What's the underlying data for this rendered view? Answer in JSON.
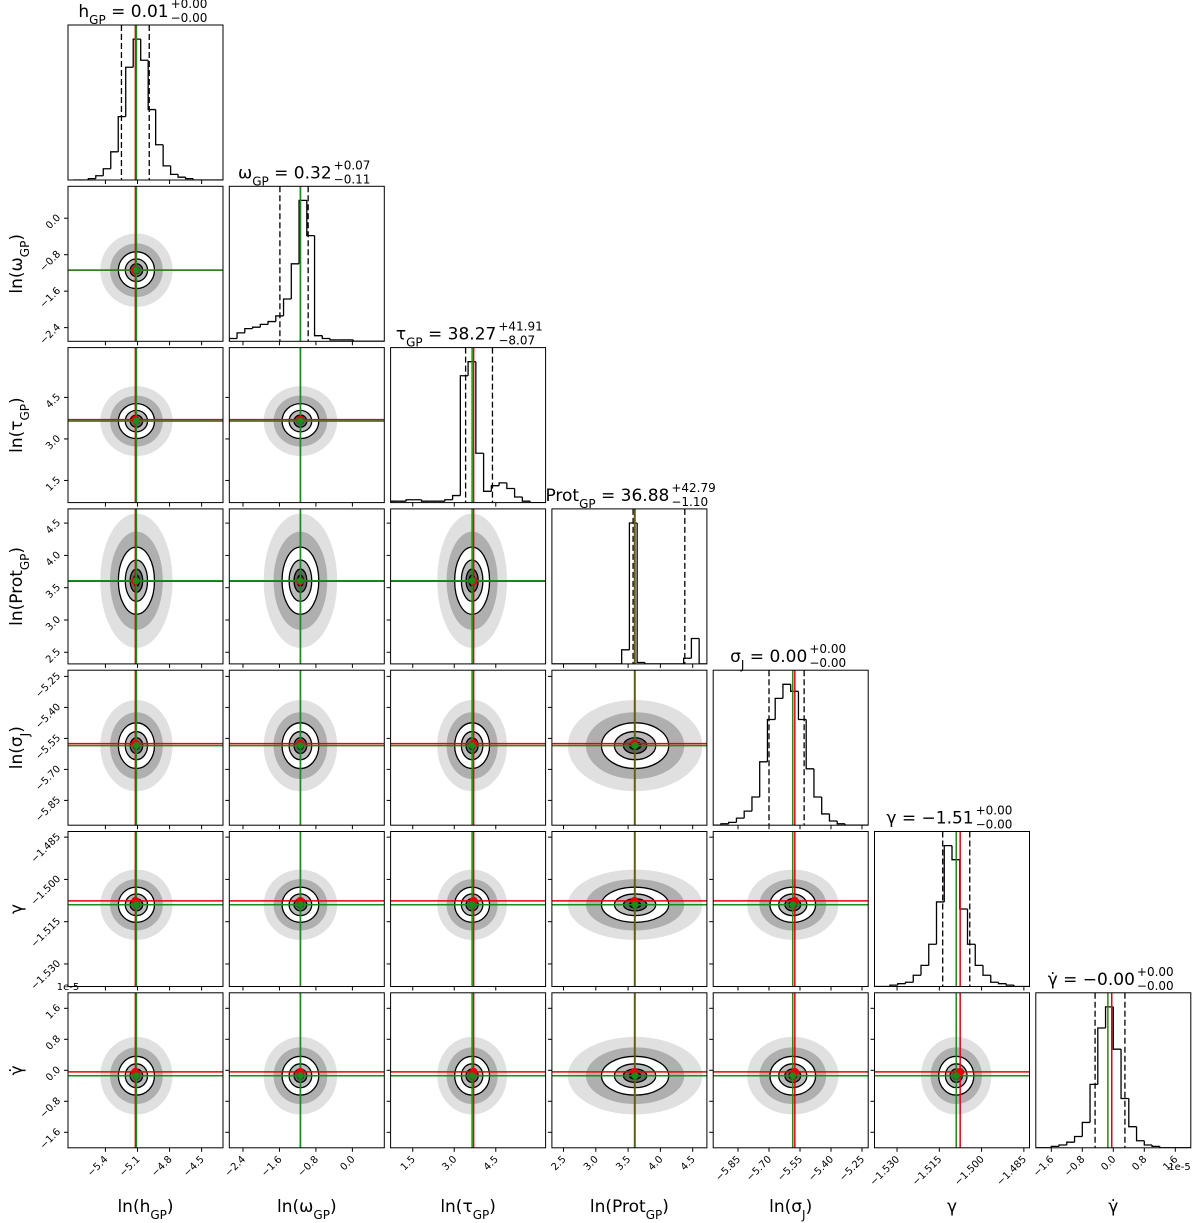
{
  "chart_data": {
    "type": "corner",
    "truth_color": "#e8000b",
    "median_color": "#1a8c1a",
    "offset_label": "1e-5",
    "params": [
      {
        "label": [
          {
            "t": "ln(h"
          },
          {
            "t": "GP",
            "sub": true
          },
          {
            "t": ")"
          }
        ],
        "title": {
          "parts": [
            {
              "t": "h"
            },
            {
              "t": "GP",
              "sub": true
            },
            {
              "t": " = 0.01"
            }
          ],
          "upper": "+0.00",
          "lower": "−0.00"
        },
        "lim": [
          -5.75,
          -4.3
        ],
        "ticks": [
          {
            "value": -5.4,
            "label": "−5.4"
          },
          {
            "value": -5.1,
            "label": "−5.1"
          },
          {
            "value": -4.8,
            "label": "−4.8"
          },
          {
            "value": -4.5,
            "label": "−4.5"
          }
        ],
        "truth": -5.12,
        "median": -5.11,
        "quantiles": [
          -5.25,
          -4.99
        ],
        "bins": [
          -5.7,
          -5.63,
          -5.56,
          -5.49,
          -5.42,
          -5.35,
          -5.28,
          -5.21,
          -5.14,
          -5.07,
          -5.0,
          -4.93,
          -4.86,
          -4.79,
          -4.72,
          -4.65,
          -4.58,
          -4.51,
          -4.44,
          -4.37,
          -4.3
        ],
        "counts": [
          0,
          0,
          1,
          3,
          8,
          20,
          45,
          80,
          100,
          85,
          50,
          25,
          10,
          4,
          2,
          1,
          0,
          0,
          0,
          0
        ]
      },
      {
        "label": [
          {
            "t": "ln(ω"
          },
          {
            "t": "GP",
            "sub": true
          },
          {
            "t": ")"
          }
        ],
        "title": {
          "parts": [
            {
              "t": "ω"
            },
            {
              "t": "GP",
              "sub": true
            },
            {
              "t": " = 0.32"
            }
          ],
          "upper": "+0.07",
          "lower": "−0.11"
        },
        "lim": [
          -2.7,
          0.7
        ],
        "ticks": [
          {
            "value": -2.4,
            "label": "−2.4"
          },
          {
            "value": -1.6,
            "label": "−1.6"
          },
          {
            "value": -0.8,
            "label": "−0.8"
          },
          {
            "value": 0,
            "label": "0.0"
          }
        ],
        "truth": -1.14,
        "median": -1.14,
        "quantiles": [
          -1.59,
          -0.97
        ],
        "bins": [
          -2.7,
          -2.53,
          -2.36,
          -2.19,
          -2.02,
          -1.85,
          -1.68,
          -1.51,
          -1.34,
          -1.17,
          -1.0,
          -0.83,
          -0.66,
          -0.49,
          -0.32,
          -0.15,
          0.02,
          0.19,
          0.36,
          0.53,
          0.7
        ],
        "counts": [
          2,
          6,
          9,
          10,
          12,
          14,
          18,
          30,
          55,
          100,
          75,
          4,
          2,
          1,
          1,
          1,
          0,
          0,
          0,
          0
        ]
      },
      {
        "label": [
          {
            "t": "ln(τ"
          },
          {
            "t": "GP",
            "sub": true
          },
          {
            "t": ")"
          }
        ],
        "title": {
          "parts": [
            {
              "t": "τ"
            },
            {
              "t": "GP",
              "sub": true
            },
            {
              "t": " = 38.27"
            }
          ],
          "upper": "+41.91",
          "lower": "−8.07"
        },
        "lim": [
          0.7,
          6.3
        ],
        "ticks": [
          1.5,
          {
            "value": 3,
            "label": "3.0"
          },
          4.5
        ],
        "truth": 3.7,
        "median": 3.645,
        "quantiles": [
          3.41,
          4.38
        ],
        "bins": [
          0.7,
          0.98,
          1.26,
          1.54,
          1.82,
          2.1,
          2.38,
          2.66,
          2.94,
          3.22,
          3.5,
          3.78,
          4.06,
          4.34,
          4.62,
          4.9,
          5.18,
          5.46,
          5.74,
          6.02,
          6.3
        ],
        "counts": [
          1,
          1,
          2,
          2,
          1,
          1,
          1,
          2,
          5,
          90,
          100,
          35,
          8,
          12,
          14,
          10,
          4,
          1,
          0,
          0
        ]
      },
      {
        "label": [
          {
            "t": "ln(Prot"
          },
          {
            "t": "GP",
            "sub": true
          },
          {
            "t": ")"
          }
        ],
        "title": {
          "parts": [
            {
              "t": "Prot"
            },
            {
              "t": "GP",
              "sub": true
            },
            {
              "t": " = 36.88"
            }
          ],
          "upper": "+42.79",
          "lower": "−1.10"
        },
        "lim": [
          2.32,
          4.72
        ],
        "ticks": [
          2.5,
          {
            "value": 3,
            "label": "3.0"
          },
          3.5,
          {
            "value": 4,
            "label": "4.0"
          },
          4.5
        ],
        "truth": 3.6,
        "median": 3.608,
        "quantiles": [
          3.577,
          4.378
        ],
        "bins": [
          2.32,
          2.44,
          2.56,
          2.68,
          2.8,
          2.92,
          3.04,
          3.16,
          3.28,
          3.4,
          3.52,
          3.64,
          3.76,
          3.88,
          4.0,
          4.12,
          4.24,
          4.36,
          4.48,
          4.6,
          4.72
        ],
        "counts": [
          0,
          0,
          0,
          0,
          0,
          0,
          0,
          0,
          0,
          10,
          100,
          1,
          0,
          0,
          0,
          0,
          0,
          4,
          18,
          0
        ]
      },
      {
        "label": [
          {
            "t": "ln(σ"
          },
          {
            "t": "J",
            "sub": true
          },
          {
            "t": ")"
          }
        ],
        "title": {
          "parts": [
            {
              "t": "σ"
            },
            {
              "t": "J",
              "sub": true
            },
            {
              "t": " = 0.00"
            }
          ],
          "upper": "+0.00",
          "lower": "−0.00"
        },
        "lim": [
          -5.97,
          -5.22
        ],
        "ticks": [
          {
            "value": -5.85,
            "label": "−5.85"
          },
          {
            "value": -5.7,
            "label": "−5.70"
          },
          {
            "value": -5.55,
            "label": "−5.55"
          },
          {
            "value": -5.4,
            "label": "−5.40"
          },
          {
            "value": -5.25,
            "label": "−5.25"
          }
        ],
        "truth": -5.575,
        "median": -5.585,
        "quantiles": [
          -5.7,
          -5.53
        ],
        "bins": [
          -5.97,
          -5.9325,
          -5.895,
          -5.8575,
          -5.82,
          -5.7825,
          -5.745,
          -5.7075,
          -5.67,
          -5.6325,
          -5.595,
          -5.5575,
          -5.52,
          -5.4825,
          -5.445,
          -5.4075,
          -5.37,
          -5.3325,
          -5.295,
          -5.2575,
          -5.22
        ],
        "counts": [
          0,
          1,
          2,
          5,
          10,
          20,
          45,
          75,
          90,
          100,
          95,
          75,
          40,
          20,
          8,
          3,
          1,
          0,
          0,
          0
        ]
      },
      {
        "label": [
          {
            "t": "γ"
          }
        ],
        "title": {
          "parts": [
            {
              "t": "γ = −1.51"
            }
          ],
          "upper": "+0.00",
          "lower": "−0.00"
        },
        "lim": [
          -1.538,
          -1.483
        ],
        "ticks": [
          {
            "value": -1.53,
            "label": "−1.530"
          },
          {
            "value": -1.515,
            "label": "−1.515"
          },
          {
            "value": -1.5,
            "label": "−1.500"
          },
          {
            "value": -1.485,
            "label": "−1.485"
          }
        ],
        "truth": -1.5076,
        "median": -1.509,
        "quantiles": [
          -1.5138,
          -1.5042
        ],
        "bins": [
          -1.538,
          -1.53525,
          -1.5325,
          -1.52975,
          -1.527,
          -1.52425,
          -1.5215,
          -1.51875,
          -1.516,
          -1.51325,
          -1.5105,
          -1.50775,
          -1.505,
          -1.50225,
          -1.4995,
          -1.49675,
          -1.494,
          -1.49125,
          -1.4885,
          -1.48575,
          -1.483
        ],
        "counts": [
          0,
          0,
          1,
          2,
          3,
          8,
          15,
          30,
          60,
          100,
          90,
          55,
          30,
          15,
          8,
          3,
          2,
          1,
          0,
          0
        ]
      },
      {
        "label": [
          {
            "t": "γ̇"
          }
        ],
        "title": {
          "parts": [
            {
              "t": "γ̇ = −0.00"
            }
          ],
          "upper": "+0.00",
          "lower": "−0.00"
        },
        "lim": [
          -2,
          2
        ],
        "ticks": [
          {
            "value": -1.6,
            "label": "−1.6"
          },
          {
            "value": -0.8,
            "label": "−0.8"
          },
          {
            "value": 0,
            "label": "0.0"
          },
          0.8,
          1.6
        ],
        "truth": -0.04,
        "median": -0.14,
        "quantiles": [
          -0.47,
          0.3
        ],
        "bins": [
          -2,
          -1.8,
          -1.6,
          -1.4,
          -1.2,
          -1,
          -0.8,
          -0.6,
          -0.4,
          -0.2,
          0,
          0.2,
          0.4,
          0.6,
          0.8,
          1,
          1.2,
          1.4,
          1.6,
          1.8,
          2
        ],
        "counts": [
          0,
          0,
          1,
          2,
          4,
          8,
          18,
          45,
          85,
          100,
          70,
          35,
          15,
          5,
          2,
          1,
          0,
          0,
          0,
          0
        ]
      }
    ]
  }
}
